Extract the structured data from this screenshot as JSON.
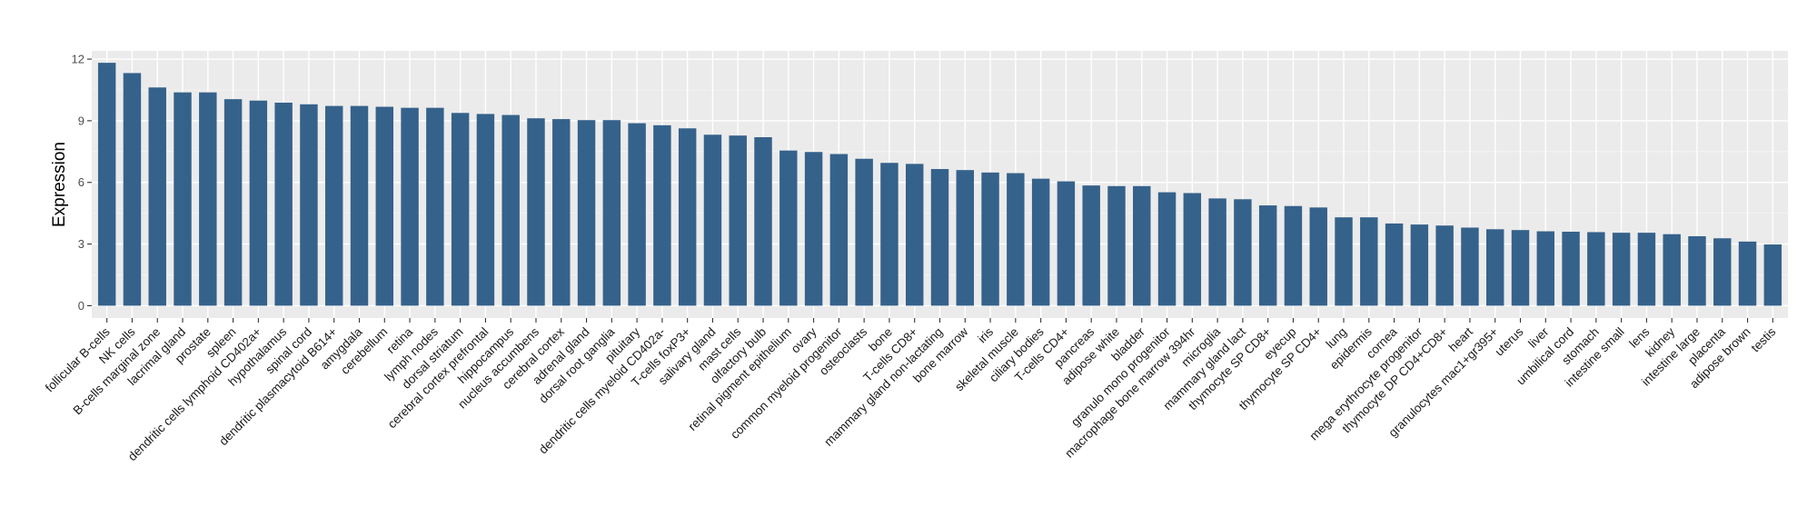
{
  "chart_data": {
    "type": "bar",
    "title": "",
    "xlabel": "",
    "ylabel": "Expression",
    "ylim": [
      -0.6,
      12.4
    ],
    "yticks": [
      0,
      3,
      6,
      9,
      12
    ],
    "ytick_labels": [
      "0",
      "3",
      "6",
      "9",
      "12"
    ],
    "grid": true,
    "colors": {
      "bar": "#35628b",
      "panel": "#ebebeb",
      "grid_major": "#ffffff",
      "grid_minor": "#f5f5f5"
    },
    "categories": [
      "follicular B-cells",
      "NK cells",
      "B-cells marginal zone",
      "lacrimal gland",
      "prostate",
      "spleen",
      "dendritic cells lymphoid CD402a+",
      "hypothalamus",
      "spinal cord",
      "dendritic plasmacytoid B614+",
      "amygdala",
      "cerebellum",
      "retina",
      "lymph nodes",
      "dorsal striatum",
      "cerebral cortex prefrontal",
      "hippocampus",
      "nucleus accumbens",
      "cerebral cortex",
      "adrenal gland",
      "dorsal root ganglia",
      "pituitary",
      "dendritic cells myeloid CD402a-",
      "T-cells foxP3+",
      "salivary gland",
      "mast cells",
      "olfactory bulb",
      "retinal pigment epithelium",
      "ovary",
      "common myeloid progenitor",
      "osteoclasts",
      "bone",
      "T-cells CD8+",
      "mammary gland non-lactating",
      "bone marrow",
      "iris",
      "skeletal muscle",
      "ciliary bodies",
      "T-cells CD4+",
      "pancreas",
      "adipose white",
      "bladder",
      "granulo mono progenitor",
      "macrophage bone marrow 394hr",
      "microglia",
      "mammary gland lact",
      "thymocyte SP CD8+",
      "eyecup",
      "thymocyte SP CD4+",
      "lung",
      "epidermis",
      "cornea",
      "mega erythrocyte progenitor",
      "thymocyte DP CD4+CD8+",
      "heart",
      "granulocytes mac1+gr395+",
      "uterus",
      "liver",
      "umbilical cord",
      "stomach",
      "intestine small",
      "lens",
      "kidney",
      "intestine large",
      "placenta",
      "adipose brown",
      "testis"
    ],
    "values": [
      11.82,
      11.32,
      10.62,
      10.38,
      10.38,
      10.05,
      9.98,
      9.88,
      9.8,
      9.72,
      9.72,
      9.68,
      9.63,
      9.63,
      9.38,
      9.33,
      9.28,
      9.12,
      9.08,
      9.03,
      9.03,
      8.88,
      8.78,
      8.63,
      8.32,
      8.28,
      8.2,
      7.55,
      7.48,
      7.38,
      7.15,
      6.95,
      6.9,
      6.65,
      6.6,
      6.48,
      6.45,
      6.18,
      6.05,
      5.85,
      5.82,
      5.82,
      5.52,
      5.48,
      5.22,
      5.18,
      4.88,
      4.85,
      4.78,
      4.3,
      4.3,
      4.0,
      3.95,
      3.9,
      3.8,
      3.72,
      3.68,
      3.62,
      3.6,
      3.58,
      3.55,
      3.55,
      3.48,
      3.38,
      3.28,
      3.12,
      2.98
    ]
  }
}
